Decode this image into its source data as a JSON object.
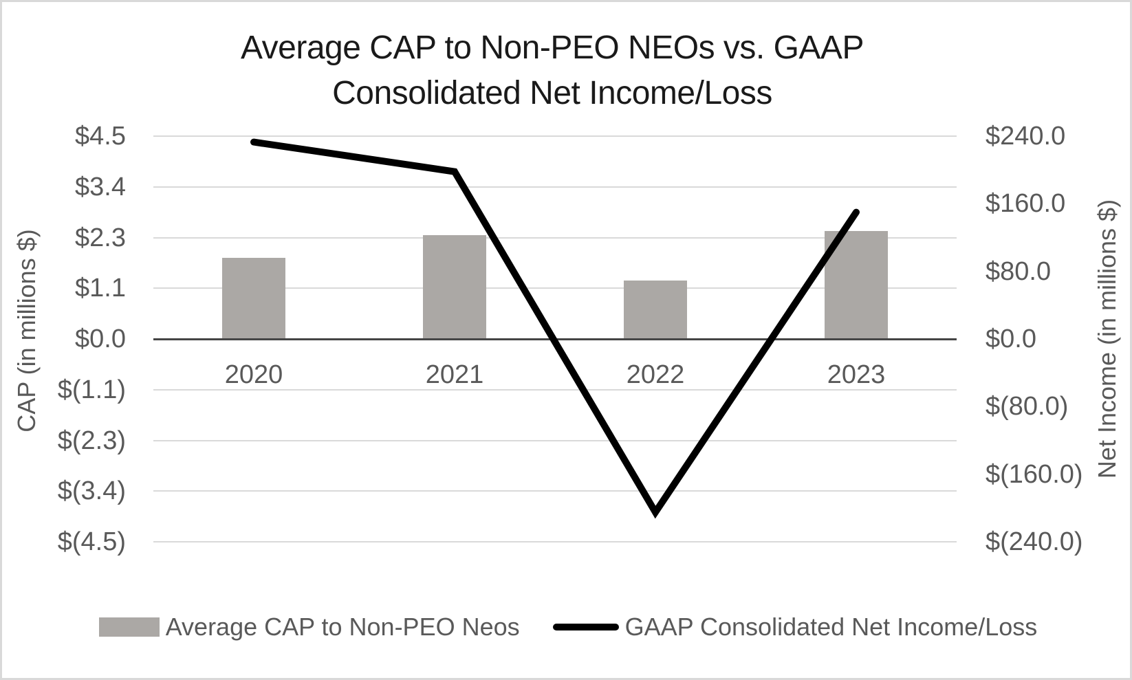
{
  "title": {
    "line1": "Average CAP to Non-PEO NEOs vs. GAAP",
    "line2": "Consolidated Net Income/Loss"
  },
  "chart_data": {
    "type": "combo-bar-line",
    "categories": [
      "2020",
      "2021",
      "2022",
      "2023"
    ],
    "series": [
      {
        "name": "Average CAP to Non-PEO Neos",
        "type": "bar",
        "axis": "left",
        "color": "#aba8a5",
        "values": [
          1.8,
          2.3,
          1.3,
          2.4
        ]
      },
      {
        "name": "GAAP Consolidated Net Income/Loss",
        "type": "line",
        "axis": "right",
        "color": "#000000",
        "values": [
          233,
          198,
          -205,
          150
        ]
      }
    ],
    "left_axis": {
      "title": "CAP (in millions $)",
      "min": -4.5,
      "max": 4.5,
      "ticks": [
        {
          "value": 4.5,
          "label": "$4.5"
        },
        {
          "value": 3.375,
          "label": "$3.4"
        },
        {
          "value": 2.25,
          "label": "$2.3"
        },
        {
          "value": 1.125,
          "label": "$1.1"
        },
        {
          "value": 0,
          "label": "$0.0"
        },
        {
          "value": -1.125,
          "label": "$(1.1)"
        },
        {
          "value": -2.25,
          "label": "$(2.3)"
        },
        {
          "value": -3.375,
          "label": "$(3.4)"
        },
        {
          "value": -4.5,
          "label": "$(4.5)"
        }
      ]
    },
    "right_axis": {
      "title": "Net Income (in millions $)",
      "min": -240,
      "max": 240,
      "ticks": [
        {
          "value": 240,
          "label": "$240.0"
        },
        {
          "value": 160,
          "label": "$160.0"
        },
        {
          "value": 80,
          "label": "$80.0"
        },
        {
          "value": 0,
          "label": "$0.0"
        },
        {
          "value": -80,
          "label": "$(80.0)"
        },
        {
          "value": -160,
          "label": "$(160.0)"
        },
        {
          "value": -240,
          "label": "$(240.0)"
        }
      ]
    },
    "grid": true,
    "legend_position": "bottom",
    "colors": {
      "bar_fill": "#aba8a5",
      "line_stroke": "#000000",
      "gridline": "#d9d9d9",
      "zero_axis": "#454545",
      "axis_text": "#595959",
      "title_text": "#1a1a1a"
    }
  }
}
